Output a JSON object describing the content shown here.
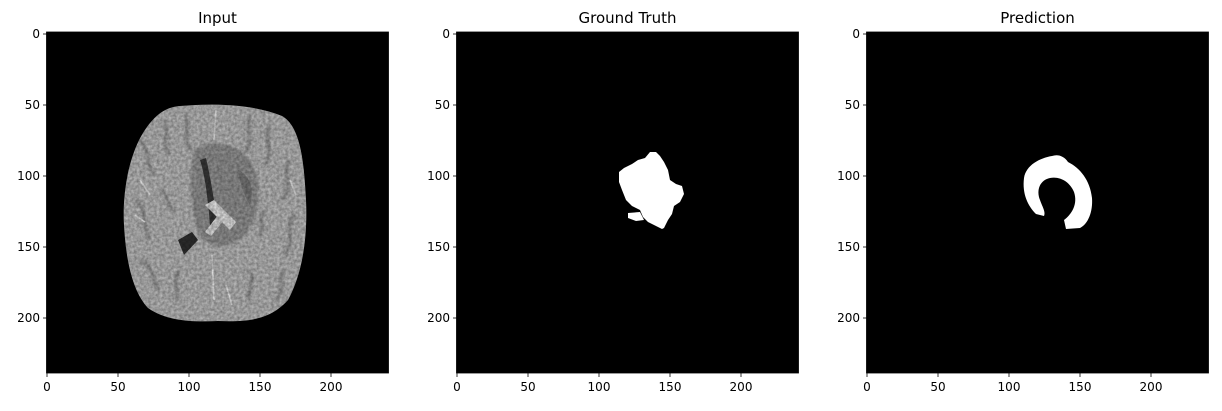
{
  "panels": [
    {
      "title": "Input",
      "x_ticks": [
        "0",
        "50",
        "100",
        "150",
        "200"
      ],
      "y_ticks": [
        "0",
        "50",
        "100",
        "150",
        "200"
      ],
      "content": "brain MRI axial slice (grayscale)"
    },
    {
      "title": "Ground Truth",
      "x_ticks": [
        "0",
        "50",
        "100",
        "150",
        "200"
      ],
      "y_ticks": [
        "0",
        "50",
        "100",
        "150",
        "200"
      ],
      "content": "binary tumor mask"
    },
    {
      "title": "Prediction",
      "x_ticks": [
        "0",
        "50",
        "100",
        "150",
        "200"
      ],
      "y_ticks": [
        "0",
        "50",
        "100",
        "150",
        "200"
      ],
      "content": "binary predicted tumor mask"
    }
  ],
  "colors": {
    "background": "#000000",
    "mask": "#ffffff",
    "axis": "#000000"
  }
}
